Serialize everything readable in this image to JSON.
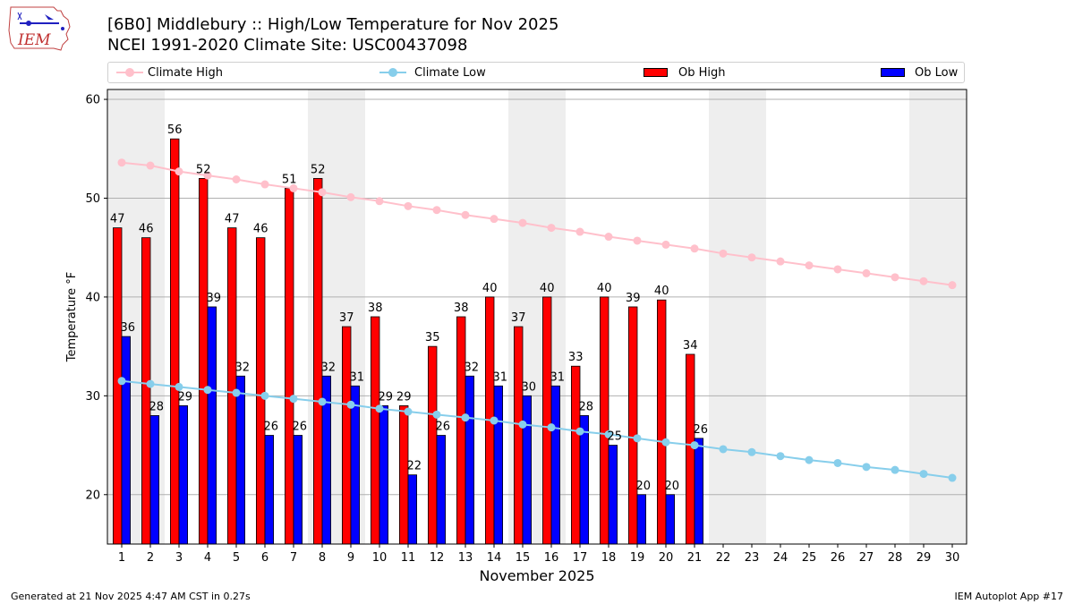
{
  "header": {
    "title_line1": "[6B0] Middlebury :: High/Low Temperature for Nov 2025",
    "title_line2": "NCEI 1991-2020 Climate Site: USC00437098",
    "logo_text": "IEM"
  },
  "legend": {
    "items": [
      {
        "label": "Climate High",
        "kind": "line",
        "color": "#ffc0cb"
      },
      {
        "label": "Climate Low",
        "kind": "line",
        "color": "#87ceeb"
      },
      {
        "label": "Ob High",
        "kind": "bar",
        "color": "#ff0000"
      },
      {
        "label": "Ob Low",
        "kind": "bar",
        "color": "#0000ff"
      }
    ],
    "placement": "top, horizontal above plot"
  },
  "footer": {
    "generated": "Generated at 21 Nov 2025 4:47 AM CST in 0.27s",
    "app": "IEM Autoplot App #17"
  },
  "chart_data": {
    "type": "bar",
    "title": "[6B0] Middlebury :: High/Low Temperature for Nov 2025",
    "subtitle": "NCEI 1991-2020 Climate Site: USC00437098",
    "xlabel": "November 2025",
    "ylabel": "Temperature °F",
    "ylim": [
      15,
      61
    ],
    "yticks": [
      20,
      30,
      40,
      50,
      60
    ],
    "grid": "horizontal",
    "categories": [
      "1",
      "2",
      "3",
      "4",
      "5",
      "6",
      "7",
      "8",
      "9",
      "10",
      "11",
      "12",
      "13",
      "14",
      "15",
      "16",
      "17",
      "18",
      "19",
      "20",
      "21",
      "22",
      "23",
      "24",
      "25",
      "26",
      "27",
      "28",
      "29",
      "30"
    ],
    "weekend_days": [
      1,
      2,
      8,
      9,
      15,
      16,
      22,
      23,
      29,
      30
    ],
    "series": [
      {
        "name": "Ob High",
        "type": "bar",
        "color": "#ff0000",
        "values": [
          47,
          46,
          56,
          52,
          47,
          46,
          51,
          52,
          37,
          38,
          29,
          35,
          38,
          40,
          37,
          40,
          33,
          40,
          39,
          40,
          34,
          null,
          null,
          null,
          null,
          null,
          null,
          null,
          null,
          null
        ],
        "plotted_values": [
          47,
          46,
          56,
          52,
          47,
          46,
          51,
          52,
          37,
          38,
          29,
          35,
          38,
          40,
          37,
          40,
          33,
          40,
          39,
          39.7,
          34.2,
          null,
          null,
          null,
          null,
          null,
          null,
          null,
          null,
          null
        ]
      },
      {
        "name": "Ob Low",
        "type": "bar",
        "color": "#0000ff",
        "values": [
          36,
          28,
          29,
          39,
          32,
          26,
          26,
          32,
          31,
          29,
          22,
          26,
          32,
          31,
          30,
          31,
          28,
          25,
          20,
          20,
          26,
          null,
          null,
          null,
          null,
          null,
          null,
          null,
          null,
          null
        ],
        "plotted_values": [
          36,
          28,
          29,
          39,
          32,
          26,
          26,
          32,
          31,
          29,
          22,
          26,
          32,
          31,
          30,
          31,
          28,
          25,
          20,
          20,
          25.7,
          null,
          null,
          null,
          null,
          null,
          null,
          null,
          null,
          null
        ]
      },
      {
        "name": "Climate High",
        "type": "line",
        "color": "#ffc0cb",
        "values": [
          53.6,
          53.3,
          52.7,
          52.3,
          51.9,
          51.4,
          51.0,
          50.6,
          50.1,
          49.7,
          49.2,
          48.8,
          48.3,
          47.9,
          47.5,
          47.0,
          46.6,
          46.1,
          45.7,
          45.3,
          44.9,
          44.4,
          44.0,
          43.6,
          43.2,
          42.8,
          42.4,
          42.0,
          41.6,
          41.2
        ]
      },
      {
        "name": "Climate Low",
        "type": "line",
        "color": "#87ceeb",
        "values": [
          31.5,
          31.2,
          30.9,
          30.6,
          30.3,
          30.0,
          29.7,
          29.4,
          29.1,
          28.7,
          28.4,
          28.1,
          27.8,
          27.5,
          27.1,
          26.8,
          26.4,
          26.1,
          25.7,
          25.3,
          25.0,
          24.6,
          24.3,
          23.9,
          23.5,
          23.2,
          22.8,
          22.5,
          22.1,
          21.7
        ]
      }
    ]
  }
}
